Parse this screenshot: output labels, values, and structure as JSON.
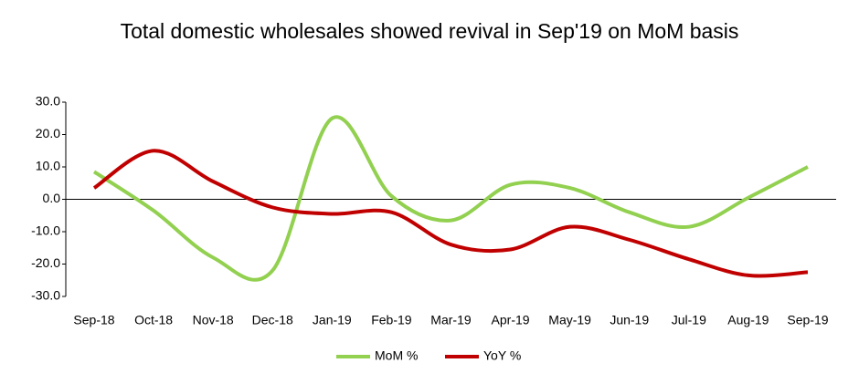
{
  "chart_data": {
    "type": "line",
    "title": "Total domestic wholesales showed revival in Sep'19 on MoM basis",
    "categories": [
      "Sep-18",
      "Oct-18",
      "Nov-18",
      "Dec-18",
      "Jan-19",
      "Feb-19",
      "Mar-19",
      "Apr-19",
      "May-19",
      "Jun-19",
      "Jul-19",
      "Aug-19",
      "Sep-19"
    ],
    "series": [
      {
        "name": "MoM %",
        "color": "#92d050",
        "values": [
          8.5,
          -3.5,
          -18,
          -22,
          25,
          1,
          -6.5,
          4.5,
          3.5,
          -4,
          -8.5,
          0.5,
          10
        ]
      },
      {
        "name": "YoY %",
        "color": "#c00000",
        "values": [
          3.5,
          15,
          5.5,
          -2.5,
          -4.5,
          -4,
          -14,
          -15.5,
          -8.5,
          -12.5,
          -18.5,
          -23.5,
          -22.5
        ]
      }
    ],
    "ylim": [
      -30,
      30
    ],
    "yticks": [
      {
        "value": 30,
        "label": "30.0"
      },
      {
        "value": 20,
        "label": "20.0"
      },
      {
        "value": 10,
        "label": "10.0"
      },
      {
        "value": 0,
        "label": "0.0"
      },
      {
        "value": -10,
        "label": "-10.0"
      },
      {
        "value": -20,
        "label": "-20.0"
      },
      {
        "value": -30,
        "label": "-30.0"
      }
    ],
    "smooth": true,
    "grid": false,
    "legend": "bottom"
  }
}
